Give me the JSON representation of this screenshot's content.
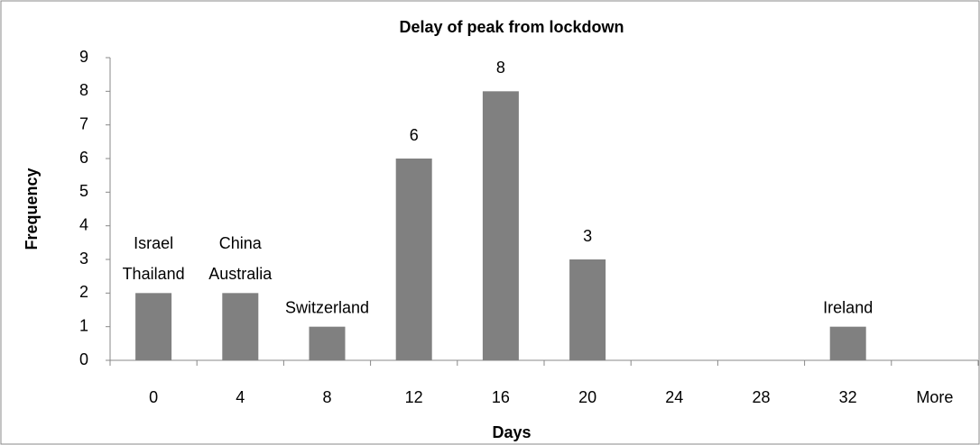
{
  "chart_data": {
    "type": "bar",
    "title": "Delay of peak from lockdown",
    "x_label": "Days",
    "y_label": "Frequency",
    "categories": [
      "0",
      "4",
      "8",
      "12",
      "16",
      "20",
      "24",
      "28",
      "32",
      "More"
    ],
    "values": [
      2,
      2,
      1,
      6,
      8,
      3,
      0,
      0,
      1,
      0
    ],
    "value_labels": [
      [
        "Israel",
        "Thailand"
      ],
      [
        "China",
        "Australia"
      ],
      [
        "Switzerland"
      ],
      null,
      null,
      null,
      null,
      null,
      [
        "Ireland"
      ],
      null
    ],
    "color": "#808080",
    "ylim": [
      0,
      9
    ],
    "yticks": [
      0,
      1,
      2,
      3,
      4,
      5,
      6,
      7,
      8,
      9
    ],
    "grid": false
  }
}
